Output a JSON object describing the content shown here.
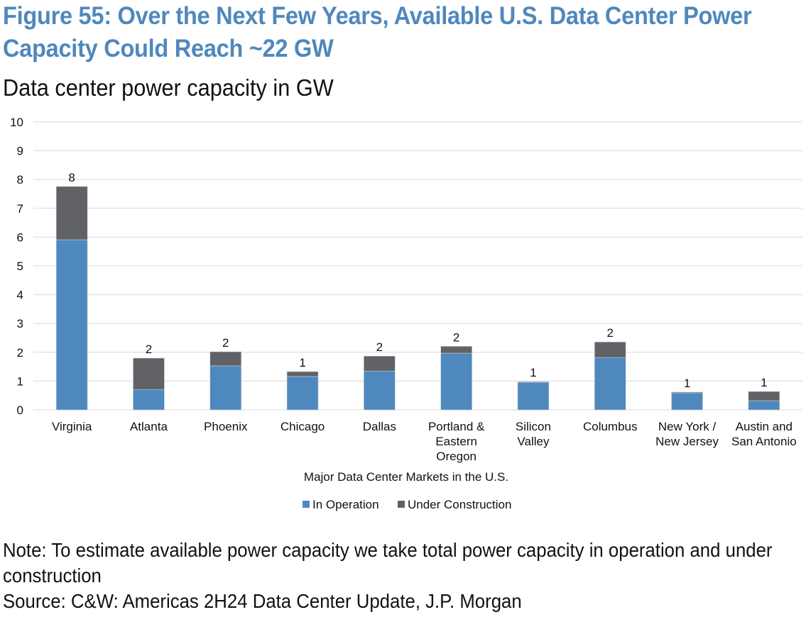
{
  "figure": {
    "title_line1": "Figure 55: Over the Next Few Years, Available U.S. Data Center Power",
    "title_line2": "Capacity Could Reach ~22 GW",
    "subtitle": "Data center power capacity in GW",
    "note_line1": "Note: To estimate available power capacity we take total power capacity in operation and under",
    "note_line2": "construction",
    "source": "Source: C&W: Americas 2H24 Data Center Update, J.P. Morgan"
  },
  "colors": {
    "title": "#4F88BD",
    "in_operation": "#4F88BD",
    "under_construction": "#616266",
    "grid": "#D9D9D9"
  },
  "chart_data": {
    "type": "bar",
    "stacked": true,
    "title": "Data center power capacity in GW",
    "xlabel": "Major Data Center Markets in the U.S.",
    "ylabel": "",
    "ylim": [
      0,
      10
    ],
    "yticks": [
      0,
      1,
      2,
      3,
      4,
      5,
      6,
      7,
      8,
      9,
      10
    ],
    "grid": true,
    "legend_position": "bottom",
    "categories": [
      [
        "Virginia"
      ],
      [
        "Atlanta"
      ],
      [
        "Phoenix"
      ],
      [
        "Chicago"
      ],
      [
        "Dallas"
      ],
      [
        "Portland &",
        "Eastern",
        "Oregon"
      ],
      [
        "Silicon",
        "Valley"
      ],
      [
        "Columbus"
      ],
      [
        "New York /",
        "New Jersey"
      ],
      [
        "Austin and",
        "San Antonio"
      ]
    ],
    "series": [
      {
        "name": "In Operation",
        "color": "#4F88BD",
        "values": [
          5.91,
          0.71,
          1.53,
          1.16,
          1.35,
          1.97,
          0.96,
          1.82,
          0.59,
          0.32
        ]
      },
      {
        "name": "Under Construction",
        "color": "#616266",
        "values": [
          1.85,
          1.09,
          0.49,
          0.17,
          0.52,
          0.24,
          0.02,
          0.54,
          0.03,
          0.32
        ]
      }
    ],
    "total_labels": [
      "8",
      "2",
      "2",
      "1",
      "2",
      "2",
      "1",
      "2",
      "1",
      "1"
    ]
  }
}
